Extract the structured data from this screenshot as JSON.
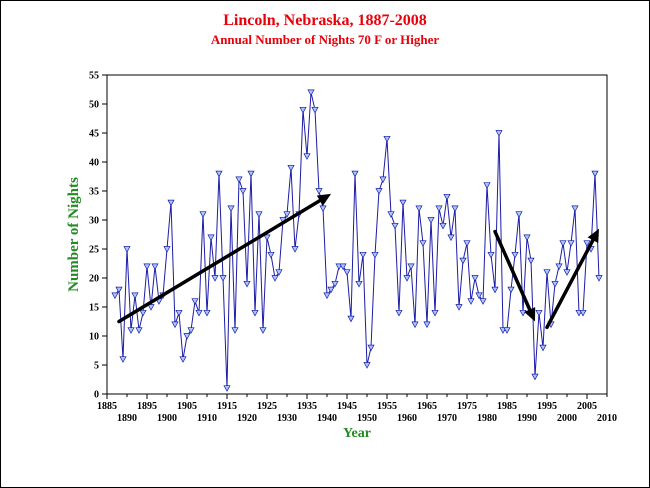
{
  "chart_data": {
    "type": "line",
    "title": "Lincoln, Nebraska, 1887-2008",
    "subtitle": "Annual Number of Nights 70 F or Higher",
    "xlabel": "Year",
    "ylabel": "Number of Nights",
    "xlim": [
      1885,
      2010
    ],
    "ylim": [
      0,
      55
    ],
    "x_ticks_major": [
      1885,
      1895,
      1905,
      1915,
      1925,
      1935,
      1945,
      1955,
      1965,
      1975,
      1985,
      1995,
      2005
    ],
    "x_ticks_minor": [
      1890,
      1900,
      1910,
      1920,
      1930,
      1940,
      1950,
      1960,
      1970,
      1980,
      1990,
      2000,
      2010
    ],
    "y_ticks": [
      0,
      5,
      10,
      15,
      20,
      25,
      30,
      35,
      40,
      45,
      50,
      55
    ],
    "grid": false,
    "series": [
      {
        "x": [
          1887,
          1888,
          1889,
          1890,
          1891,
          1892,
          1893,
          1894,
          1895,
          1896,
          1897,
          1898,
          1899,
          1900,
          1901,
          1902,
          1903,
          1904,
          1905,
          1906,
          1907,
          1908,
          1909,
          1910,
          1911,
          1912,
          1913,
          1914,
          1915,
          1916,
          1917,
          1918,
          1919,
          1920,
          1921,
          1922,
          1923,
          1924,
          1925,
          1926,
          1927,
          1928,
          1929,
          1930,
          1931,
          1932,
          1933,
          1934,
          1935,
          1936,
          1937,
          1938,
          1939,
          1940,
          1941,
          1942,
          1943,
          1944,
          1945,
          1946,
          1947,
          1948,
          1949,
          1950,
          1951,
          1952,
          1953,
          1954,
          1955,
          1956,
          1957,
          1958,
          1959,
          1960,
          1961,
          1962,
          1963,
          1964,
          1965,
          1966,
          1967,
          1968,
          1969,
          1970,
          1971,
          1972,
          1973,
          1974,
          1975,
          1976,
          1977,
          1978,
          1979,
          1980,
          1981,
          1982,
          1983,
          1984,
          1985,
          1986,
          1987,
          1988,
          1989,
          1990,
          1991,
          1992,
          1993,
          1994,
          1995,
          1996,
          1997,
          1998,
          1999,
          2000,
          2001,
          2002,
          2003,
          2004,
          2005,
          2006,
          2007,
          2008
        ],
        "y": [
          17,
          18,
          6,
          25,
          11,
          17,
          11,
          14,
          22,
          15,
          22,
          16,
          17,
          25,
          33,
          12,
          14,
          6,
          10,
          11,
          16,
          14,
          31,
          14,
          27,
          20,
          38,
          20,
          1,
          32,
          11,
          37,
          35,
          19,
          38,
          14,
          31,
          11,
          27,
          24,
          20,
          21,
          30,
          31,
          39,
          25,
          31,
          49,
          41,
          52,
          49,
          35,
          32,
          17,
          18,
          19,
          22,
          22,
          21,
          13,
          38,
          19,
          24,
          5,
          8,
          24,
          35,
          37,
          44,
          31,
          29,
          14,
          33,
          20,
          22,
          12,
          32,
          26,
          12,
          30,
          14,
          32,
          29,
          34,
          27,
          32,
          15,
          23,
          26,
          16,
          20,
          17,
          16,
          36,
          24,
          18,
          45,
          11,
          11,
          18,
          24,
          31,
          14,
          27,
          23,
          3,
          14,
          8,
          21,
          12,
          19,
          22,
          26,
          21,
          26,
          32,
          14,
          14,
          26,
          25,
          38,
          20
        ]
      }
    ],
    "annotations": [
      {
        "type": "arrow",
        "from": [
          1888,
          12.5
        ],
        "to": [
          1941,
          34.5
        ]
      },
      {
        "type": "arrow",
        "from": [
          1982,
          28
        ],
        "to": [
          1992,
          12.5
        ]
      },
      {
        "type": "arrow",
        "from": [
          1995,
          11.5
        ],
        "to": [
          2008,
          28.5
        ]
      }
    ],
    "colors": {
      "title": "#e8000b",
      "axis_title": "#228b22",
      "line": "#1c1ca8",
      "marker_fill": "#a7c7ff",
      "arrow": "#000000"
    }
  }
}
